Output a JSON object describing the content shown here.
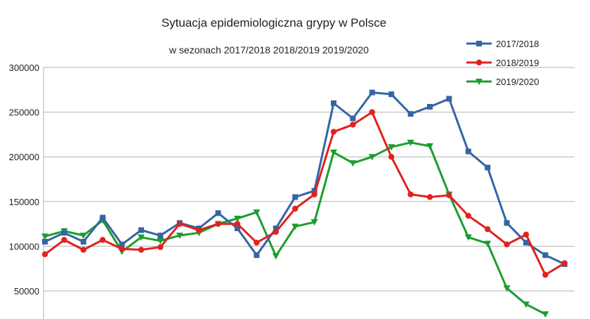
{
  "chart_data": {
    "type": "line",
    "title": "Sytuacja epidemiologiczna grypy w Polsce",
    "subtitle": "w sezonach 2017/2018 2018/2019 2019/2020",
    "xlabel": "",
    "ylabel": "",
    "ylim": [
      25000,
      300000
    ],
    "yticks": [
      "300000",
      "250000",
      "200000",
      "150000",
      "100000",
      "50000"
    ],
    "ytick_values": [
      300000,
      250000,
      200000,
      150000,
      100000,
      50000
    ],
    "grid": true,
    "legend_position": "top-right",
    "x": [
      1,
      2,
      3,
      4,
      5,
      6,
      7,
      8,
      9,
      10,
      11,
      12,
      13,
      14,
      15,
      16,
      17,
      18,
      19,
      20,
      21,
      22,
      23,
      24,
      25,
      26,
      27,
      28,
      29
    ],
    "series": [
      {
        "name": "2017/2018",
        "color": "#3465a4",
        "marker": "square",
        "values": [
          105000,
          115000,
          105000,
          132000,
          102000,
          118000,
          112000,
          126000,
          120000,
          137000,
          120000,
          90000,
          120000,
          155000,
          162000,
          260000,
          243000,
          272000,
          270000,
          248000,
          256000,
          265000,
          206000,
          188000,
          126000,
          104000,
          90000,
          80000,
          null
        ]
      },
      {
        "name": "2018/2019",
        "color": "#e3211e",
        "marker": "circle",
        "values": [
          91000,
          107000,
          96000,
          107000,
          97000,
          96000,
          99000,
          125000,
          118000,
          125000,
          125000,
          104000,
          116000,
          142000,
          158000,
          228000,
          236000,
          250000,
          200000,
          158000,
          155000,
          157000,
          134000,
          119000,
          102000,
          113000,
          68000,
          81000,
          null
        ]
      },
      {
        "name": "2019/2020",
        "color": "#1a9e2f",
        "marker": "triangle-down",
        "values": [
          111000,
          117000,
          112000,
          129000,
          94000,
          110000,
          106000,
          112000,
          115000,
          125000,
          131000,
          138000,
          89000,
          122000,
          127000,
          205000,
          193000,
          200000,
          211000,
          216000,
          212000,
          158000,
          110000,
          103000,
          53000,
          35000,
          24000,
          null,
          null
        ]
      }
    ]
  }
}
